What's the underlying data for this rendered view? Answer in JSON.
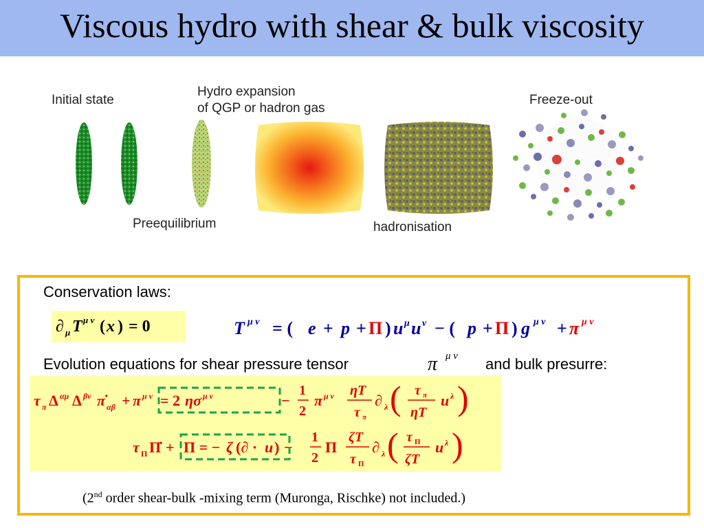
{
  "title": "Viscous hydro with shear & bulk viscosity",
  "stages": {
    "initial": "Initial state",
    "hydro_line1": "Hydro expansion",
    "hydro_line2": "of QGP or hadron gas",
    "freeze": "Freeze-out",
    "preeq": "Preequilibrium",
    "hadron": "hadronisation"
  },
  "conservation_label": "Conservation laws:",
  "evolution_label_before": "Evolution equations for shear pressure tensor",
  "evolution_label_after": "and bulk presurre:",
  "footnote": {
    "prefix": "(2",
    "sup": "nd",
    "rest": " order shear-bulk -mixing term (Muronga, Rischke) not included.)"
  },
  "colors": {
    "title_bg": "#9fb8f0",
    "frame": "#f5b800",
    "eq_bg": "#ffffa8",
    "bulk_pi": "#e00000",
    "equation_blue": "#00009a",
    "dashed_box": "#1aa34a"
  }
}
